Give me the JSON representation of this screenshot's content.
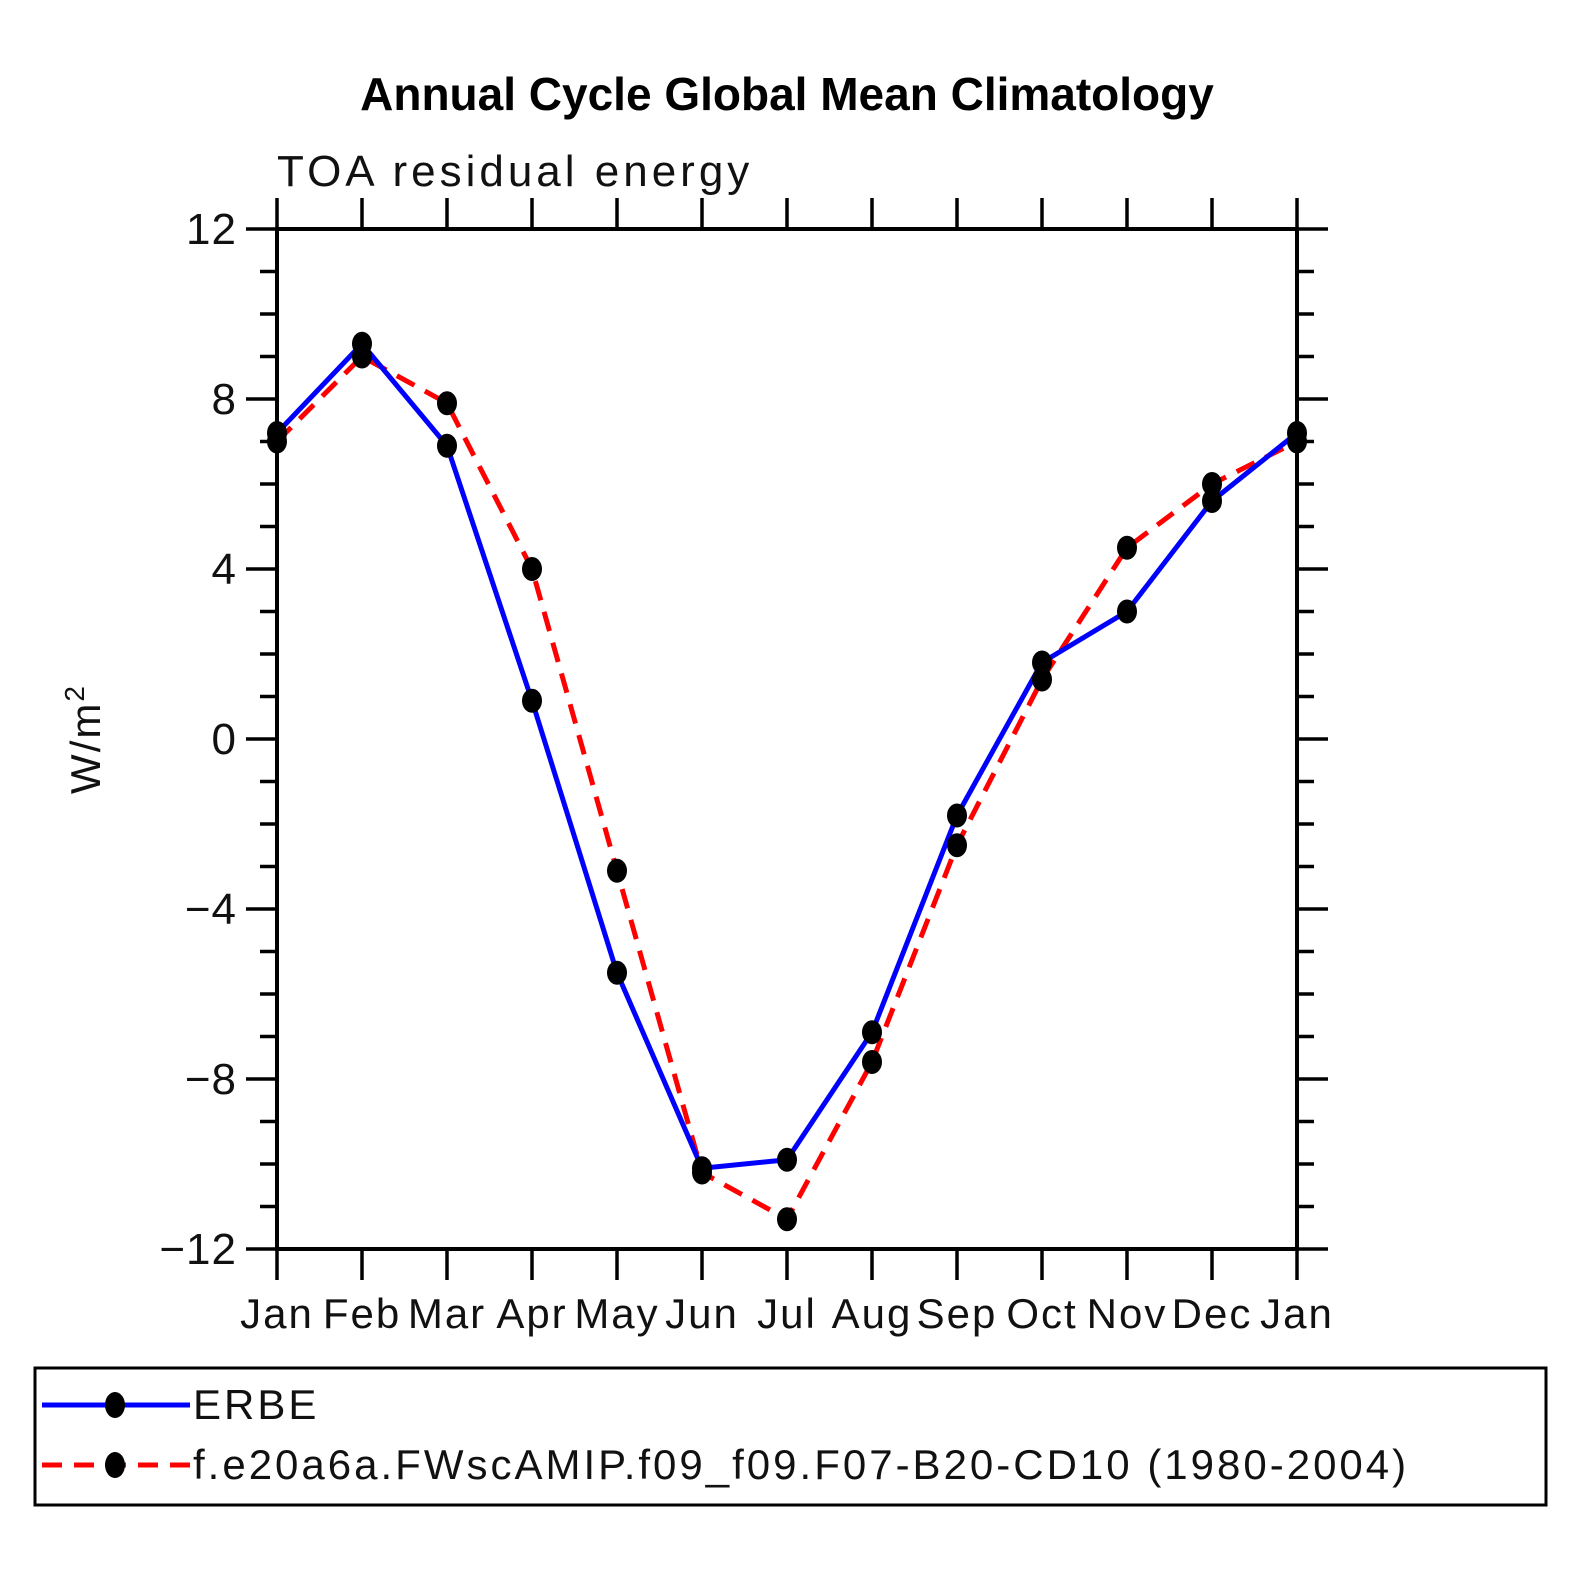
{
  "title": "Annual Cycle Global Mean Climatology",
  "subtitle": "TOA residual energy",
  "y_axis": {
    "label_base": "W/m",
    "label_sup": "2",
    "tick_labels": [
      "12",
      "8",
      "4",
      "0",
      "−4",
      "−8",
      "−12"
    ]
  },
  "x_axis": {
    "tick_labels": [
      "Jan",
      "Feb",
      "Mar",
      "Apr",
      "May",
      "Jun",
      "Jul",
      "Aug",
      "Sep",
      "Oct",
      "Nov",
      "Dec",
      "Jan"
    ]
  },
  "legend": {
    "entries": [
      {
        "label": "ERBE",
        "line_color": "#0000ff",
        "line_style": "solid",
        "marker": "black-dot"
      },
      {
        "label": "f.e20a6a.FWscAMIP.f09_f09.F07-B20-CD10 (1980-2004)",
        "line_color": "#ff0000",
        "line_style": "dashed",
        "marker": "black-dot"
      }
    ]
  },
  "colors": {
    "erbe_line": "#0000ff",
    "model_line": "#ff0000",
    "marker": "#000000",
    "axis": "#000000"
  },
  "chart_data": {
    "type": "line",
    "title": "Annual Cycle Global Mean Climatology",
    "subtitle": "TOA residual energy",
    "xlabel": "",
    "ylabel": "W/m²",
    "categories": [
      "Jan",
      "Feb",
      "Mar",
      "Apr",
      "May",
      "Jun",
      "Jul",
      "Aug",
      "Sep",
      "Oct",
      "Nov",
      "Dec",
      "Jan"
    ],
    "series": [
      {
        "name": "ERBE",
        "color": "#0000ff",
        "style": "solid",
        "marker": "black-dot",
        "values": [
          7.2,
          9.3,
          6.9,
          0.9,
          -5.5,
          -10.1,
          -9.9,
          -6.9,
          -1.8,
          1.8,
          3.0,
          5.6,
          7.2
        ]
      },
      {
        "name": "f.e20a6a.FWscAMIP.f09_f09.F07-B20-CD10 (1980-2004)",
        "color": "#ff0000",
        "style": "dashed",
        "marker": "black-dot",
        "values": [
          7.0,
          9.0,
          7.9,
          4.0,
          -3.1,
          -10.2,
          -11.3,
          -7.6,
          -2.5,
          1.4,
          4.5,
          6.0,
          7.0
        ]
      }
    ],
    "ylim": [
      -12,
      12
    ],
    "yticks_major": [
      -12,
      -8,
      -4,
      0,
      4,
      8,
      12
    ],
    "ytick_minor_step": 1,
    "grid": false,
    "legend_position": "bottom-box"
  }
}
